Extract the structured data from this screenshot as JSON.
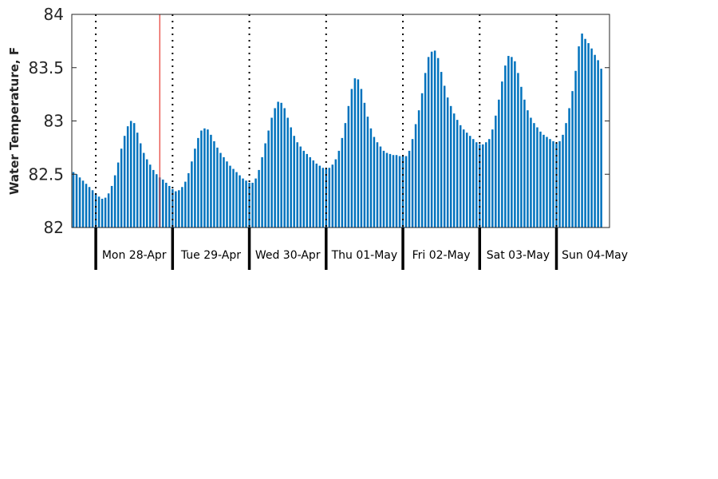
{
  "chart_data": {
    "type": "bar",
    "title": "",
    "xlabel": "",
    "ylabel": "Water Temperature, F",
    "ylim": [
      82,
      84
    ],
    "yticks": [
      "82",
      "82.5",
      "83",
      "83.5",
      "84"
    ],
    "yticks_values": [
      82,
      82.5,
      83,
      83.5,
      84
    ],
    "bar_color": "#0072BD",
    "marker_color": "#E8473F",
    "day_labels": [
      "Mon 28-Apr",
      "Tue 29-Apr",
      "Wed 30-Apr",
      "Thu 01-May",
      "Fri 02-May",
      "Sat 03-May",
      "Sun 04-May"
    ],
    "interval": "hourly",
    "start": "2025-04-27 17:00",
    "marker_at": "2025-04-28 20:00",
    "grid": false,
    "values": [
      82.52,
      82.5,
      82.47,
      82.44,
      82.41,
      82.38,
      82.35,
      82.32,
      82.29,
      82.27,
      82.28,
      82.32,
      82.39,
      82.49,
      82.61,
      82.74,
      82.86,
      82.95,
      83.0,
      82.98,
      82.89,
      82.79,
      82.7,
      82.64,
      82.59,
      82.54,
      82.5,
      82.47,
      82.45,
      82.42,
      82.39,
      82.36,
      82.34,
      82.35,
      82.38,
      82.43,
      82.51,
      82.62,
      82.74,
      82.84,
      82.91,
      82.93,
      82.92,
      82.87,
      82.81,
      82.75,
      82.7,
      82.66,
      82.62,
      82.58,
      82.55,
      82.52,
      82.49,
      82.46,
      82.44,
      82.42,
      82.42,
      82.46,
      82.54,
      82.66,
      82.79,
      82.91,
      83.03,
      83.12,
      83.18,
      83.17,
      83.12,
      83.03,
      82.94,
      82.86,
      82.8,
      82.76,
      82.72,
      82.69,
      82.66,
      82.63,
      82.6,
      82.58,
      82.56,
      82.55,
      82.56,
      82.59,
      82.64,
      82.72,
      82.84,
      82.98,
      83.14,
      83.3,
      83.4,
      83.39,
      83.3,
      83.17,
      83.04,
      82.93,
      82.85,
      82.8,
      82.76,
      82.72,
      82.7,
      82.69,
      82.68,
      82.68,
      82.67,
      82.67,
      82.67,
      82.72,
      82.83,
      82.97,
      83.1,
      83.26,
      83.45,
      83.6,
      83.65,
      83.66,
      83.59,
      83.46,
      83.33,
      83.22,
      83.14,
      83.07,
      83.01,
      82.96,
      82.92,
      82.89,
      82.86,
      82.83,
      82.8,
      82.78,
      82.78,
      82.8,
      82.83,
      82.92,
      83.05,
      83.2,
      83.37,
      83.52,
      83.61,
      83.6,
      83.56,
      83.45,
      83.32,
      83.2,
      83.1,
      83.03,
      82.98,
      82.94,
      82.9,
      82.87,
      82.85,
      82.83,
      82.81,
      82.79,
      82.81,
      82.87,
      82.98,
      83.12,
      83.28,
      83.47,
      83.7,
      83.82,
      83.77,
      83.73,
      83.68,
      83.62,
      83.57,
      83.49
    ]
  }
}
